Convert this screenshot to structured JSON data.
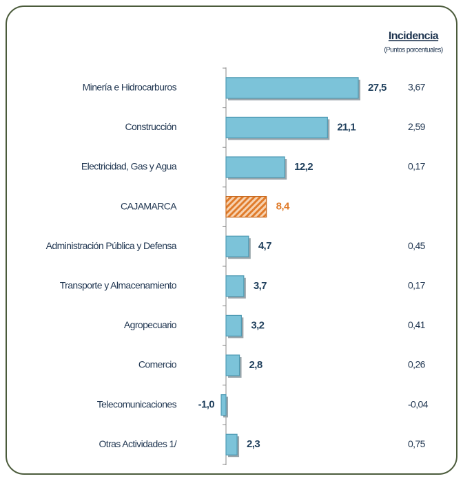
{
  "chart_data": {
    "type": "bar",
    "orientation": "horizontal",
    "categories": [
      "Minería e Hidrocarburos",
      "Construcción",
      "Electricidad, Gas y Agua",
      "CAJAMARCA",
      "Administración Pública y Defensa",
      "Transporte y Almacenamiento",
      "Agropecuario",
      "Comercio",
      "Telecomunicaciones",
      "Otras Actividades 1/"
    ],
    "values": [
      27.5,
      21.1,
      12.2,
      8.4,
      4.7,
      3.7,
      3.2,
      2.8,
      -1.0,
      2.3
    ],
    "value_labels": [
      "27,5",
      "21,1",
      "12,2",
      "8,4",
      "4,7",
      "3,7",
      "3,2",
      "2,8",
      "-1,0",
      "2,3"
    ],
    "colors": [
      "#7cc3d9",
      "#7cc3d9",
      "#7cc3d9",
      "#e07b2a",
      "#7cc3d9",
      "#7cc3d9",
      "#7cc3d9",
      "#7cc3d9",
      "#7cc3d9",
      "#7cc3d9"
    ],
    "value_label_colors": [
      "#1f3f5c",
      "#1f3f5c",
      "#1f3f5c",
      "#e07b2a",
      "#1f3f5c",
      "#1f3f5c",
      "#1f3f5c",
      "#1f3f5c",
      "#1f3f5c",
      "#1f3f5c"
    ],
    "incidence": {
      "title": "Incidencia",
      "subtitle": "(Puntos porcentuales)",
      "values": [
        3.67,
        2.59,
        0.17,
        null,
        0.45,
        0.17,
        0.41,
        0.26,
        -0.04,
        0.75
      ],
      "value_labels": [
        "3,67",
        "2,59",
        "0,17",
        null,
        "0,45",
        "0,17",
        "0,41",
        "0,26",
        "-0,04",
        "0,75"
      ]
    }
  }
}
